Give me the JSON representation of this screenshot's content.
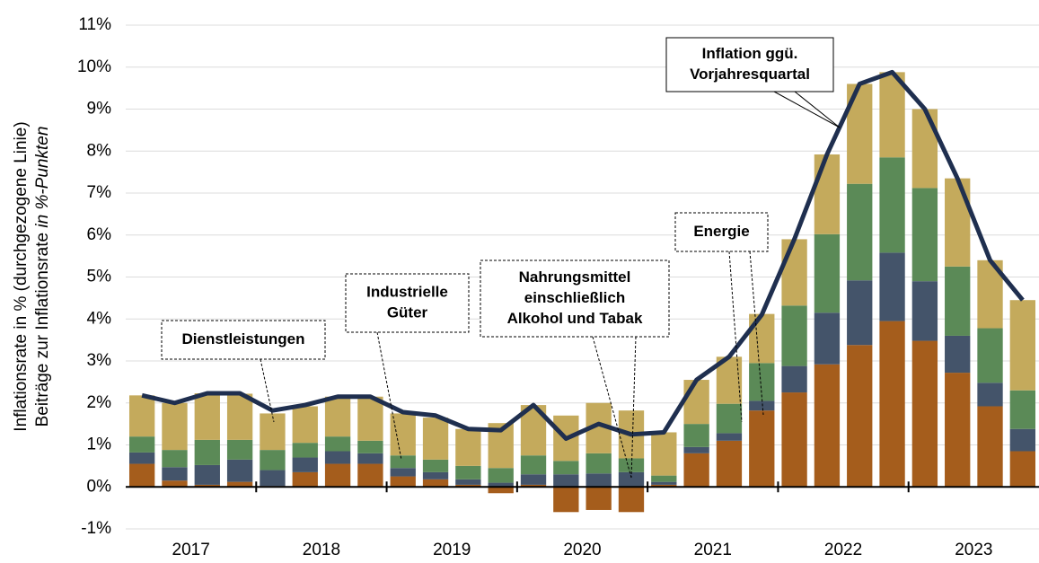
{
  "chart_data": {
    "type": "bar",
    "stacked": true,
    "y_label": [
      "Inflationsrate in % (durchgezogene Linie)",
      "Beiträge zur Inflationsrate",
      "in %-Punkten"
    ],
    "years": [
      "2017",
      "2018",
      "2019",
      "2020",
      "2021",
      "2022",
      "2023"
    ],
    "series": [
      {
        "color": "#a55d1c",
        "values": [
          0.55,
          0.15,
          0.05,
          0.12,
          0.02,
          0.35,
          0.55,
          0.55,
          0.25,
          0.18,
          0.05,
          -0.15,
          0.05,
          -0.6,
          -0.55,
          -0.6,
          0.05,
          0.8,
          1.1,
          1.82,
          2.25,
          2.92,
          3.38,
          3.95,
          3.48,
          2.72,
          1.92,
          0.85
        ]
      },
      {
        "color": "#44546a",
        "values": [
          0.27,
          0.32,
          0.47,
          0.53,
          0.38,
          0.35,
          0.3,
          0.25,
          0.2,
          0.17,
          0.13,
          0.1,
          0.25,
          0.3,
          0.32,
          0.35,
          0.07,
          0.15,
          0.18,
          0.23,
          0.63,
          1.23,
          1.54,
          1.63,
          1.42,
          0.88,
          0.56,
          0.53
        ]
      },
      {
        "color": "#5b8a57",
        "values": [
          0.38,
          0.41,
          0.6,
          0.47,
          0.48,
          0.35,
          0.35,
          0.3,
          0.3,
          0.3,
          0.32,
          0.35,
          0.45,
          0.32,
          0.48,
          0.33,
          0.15,
          0.55,
          0.7,
          0.9,
          1.44,
          1.87,
          2.3,
          2.27,
          2.22,
          1.65,
          1.3,
          0.92
        ]
      },
      {
        "color": "#c4aa5c",
        "values": [
          0.98,
          1.12,
          1.11,
          1.1,
          0.87,
          0.87,
          0.95,
          1.05,
          1.0,
          1.0,
          0.88,
          1.07,
          1.2,
          1.08,
          1.2,
          1.14,
          1.03,
          1.05,
          1.12,
          1.17,
          1.58,
          1.9,
          2.38,
          2.03,
          1.88,
          2.1,
          1.62,
          2.15
        ]
      },
      {
        "type": "line",
        "color": "#1f2f4f",
        "values": [
          2.18,
          2.0,
          2.23,
          2.23,
          1.82,
          1.95,
          2.15,
          2.15,
          1.78,
          1.7,
          1.38,
          1.35,
          1.95,
          1.15,
          1.5,
          1.25,
          1.3,
          2.55,
          3.1,
          4.1,
          5.9,
          7.92,
          9.6,
          9.88,
          9.0,
          7.35,
          5.4,
          4.45
        ]
      }
    ],
    "annotations": [
      {
        "lines": [
          "Dienstleistungen"
        ],
        "color": "#c4aa5c"
      },
      {
        "lines": [
          "Industrielle",
          "Güter"
        ],
        "color": "#5b8a57"
      },
      {
        "lines": [
          "Nahrungsmittel",
          "einschließlich",
          "Alkohol  und  Tabak"
        ],
        "color": "#44546a"
      },
      {
        "lines": [
          "Energie"
        ],
        "color": "#a55d1c"
      },
      {
        "lines": [
          "Inflation ggü.",
          "Vorjahresquartal"
        ],
        "color": "#1f2f4f"
      }
    ],
    "ylim": [
      -1,
      11
    ],
    "yticks": [
      {
        "value": -1,
        "label": "-1%"
      },
      {
        "value": 0,
        "label": "0%"
      },
      {
        "value": 1,
        "label": "1%"
      },
      {
        "value": 2,
        "label": "2%"
      },
      {
        "value": 3,
        "label": "3%"
      },
      {
        "value": 4,
        "label": "4%"
      },
      {
        "value": 5,
        "label": "5%"
      },
      {
        "value": 6,
        "label": "6%"
      },
      {
        "value": 7,
        "label": "7%"
      },
      {
        "value": 8,
        "label": "8%"
      },
      {
        "value": 9,
        "label": "9%"
      },
      {
        "value": 10,
        "label": "10%"
      },
      {
        "value": 11,
        "label": "11%"
      }
    ],
    "grid": true
  }
}
